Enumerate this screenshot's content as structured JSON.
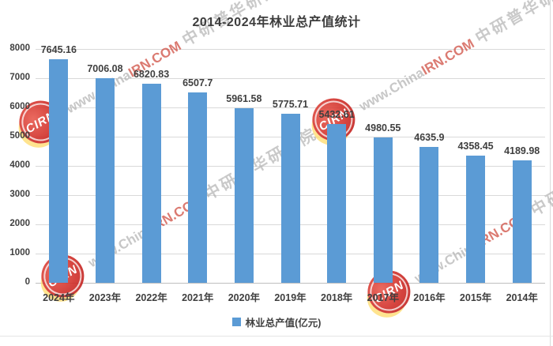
{
  "chart_data": {
    "type": "bar",
    "title": "2014-2024年林业总产值统计",
    "categories": [
      "2024年",
      "2023年",
      "2022年",
      "2021年",
      "2020年",
      "2019年",
      "2018年",
      "2017年",
      "2016年",
      "2015年",
      "2014年"
    ],
    "values": [
      7645.16,
      7006.08,
      6820.83,
      6507.7,
      5961.58,
      5775.71,
      5432.61,
      4980.55,
      4635.9,
      4358.45,
      4189.98
    ],
    "value_labels": [
      "7645.16",
      "7006.08",
      "6820.83",
      "6507.7",
      "5961.58",
      "5775.71",
      "5432.61",
      "4980.55",
      "4635.9",
      "4358.45",
      "4189.98"
    ],
    "xlabel": "",
    "ylabel": "",
    "ylim": [
      0,
      8000
    ],
    "yticks": [
      0,
      1000,
      2000,
      3000,
      4000,
      5000,
      6000,
      7000,
      8000
    ],
    "grid": true,
    "legend": [
      "林业总产值(亿元)"
    ],
    "legend_position": "bottom",
    "bar_color": "#5B9BD5"
  },
  "watermark": {
    "url_prefix": "www.China",
    "url_suffix": "IRN.COM",
    "url_full": "www.ChinaIRN.COM",
    "brand_text": "中研普华研究院",
    "logo_text": "CIRN"
  },
  "colors": {
    "bar": "#5B9BD5",
    "title_text": "#3d3d3d",
    "gridline": "#D9D9D9",
    "axis_line": "#BFBFBF",
    "watermark_red": "#CD463A",
    "watermark_gray": "#A8A8A8"
  }
}
